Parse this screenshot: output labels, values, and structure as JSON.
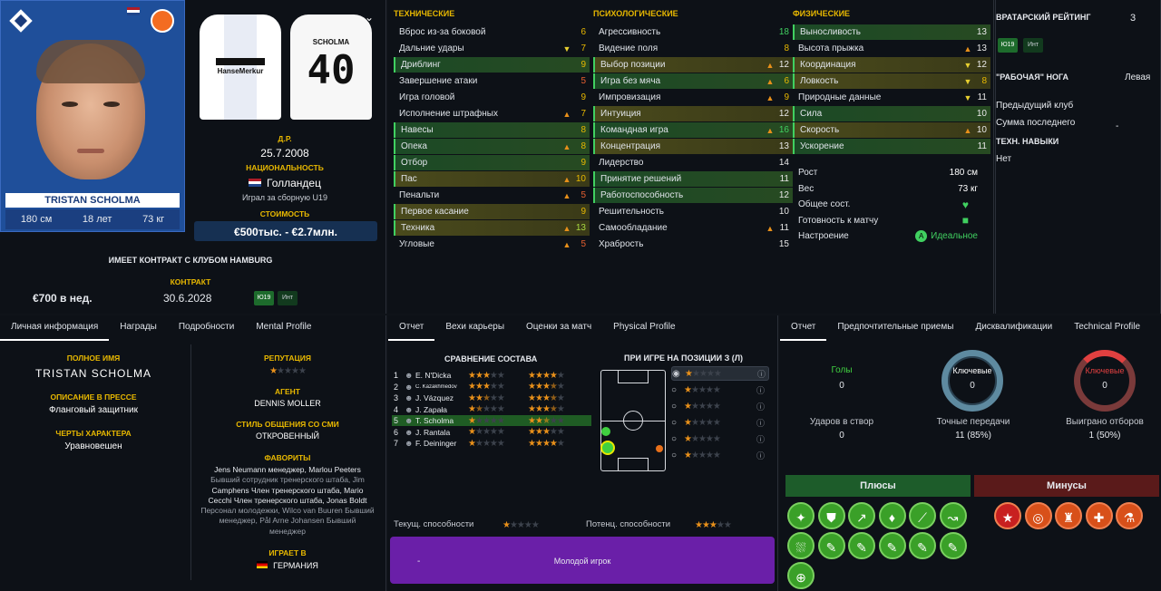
{
  "player": {
    "name_card": "TRISTAN SCHOLMA",
    "height": "180 см",
    "age": "18 лет",
    "weight": "73 кг",
    "dob_label": "Д.Р.",
    "dob": "25.7.2008",
    "nat_label": "НАЦИОНАЛЬНОСТЬ",
    "nation": "Голландец",
    "caps": "Играл за сборную U19",
    "value_label": "СТОИМОСТЬ",
    "value": "€500тыс. - €2.7млн.",
    "shirt_name": "SCHOLMA",
    "shirt_num": "40",
    "sponsor": "HanseMerkur"
  },
  "contract": {
    "club_line": "ИМЕЕТ КОНТРАКТ С КЛУБОМ HAMBURG",
    "contract_label": "КОНТРАКТ",
    "wage": "€700 в нед.",
    "end": "30.6.2028",
    "badge1": "Ю19",
    "badge2": "Инт"
  },
  "technical": {
    "header": "ТЕХНИЧЕСКИЕ",
    "rows": [
      {
        "n": "Вброс из-за боковой",
        "v": "6",
        "c": "#e8b800",
        "a": ""
      },
      {
        "n": "Дальние удары",
        "v": "7",
        "c": "#e8b800",
        "a": "▼"
      },
      {
        "n": "Дриблинг",
        "v": "9",
        "c": "#e8b800",
        "a": "",
        "hl": "g"
      },
      {
        "n": "Завершение атаки",
        "v": "5",
        "c": "#e86030",
        "a": ""
      },
      {
        "n": "Игра головой",
        "v": "9",
        "c": "#e8b800",
        "a": ""
      },
      {
        "n": "Исполнение штрафных",
        "v": "7",
        "c": "#e8b800",
        "a": "▲"
      },
      {
        "n": "Навесы",
        "v": "8",
        "c": "#e8b800",
        "a": "",
        "hl": "g"
      },
      {
        "n": "Опека",
        "v": "8",
        "c": "#e8b800",
        "a": "▲",
        "hl": "g"
      },
      {
        "n": "Отбор",
        "v": "9",
        "c": "#e8b800",
        "a": "",
        "hl": "g"
      },
      {
        "n": "Пас",
        "v": "10",
        "c": "#e8b800",
        "a": "▲",
        "hl": "y"
      },
      {
        "n": "Пенальти",
        "v": "5",
        "c": "#e86030",
        "a": "▲"
      },
      {
        "n": "Первое касание",
        "v": "9",
        "c": "#e8b800",
        "a": "",
        "hl": "y"
      },
      {
        "n": "Техника",
        "v": "13",
        "c": "#a8d840",
        "a": "▲",
        "hl": "y"
      },
      {
        "n": "Угловые",
        "v": "5",
        "c": "#e86030",
        "a": "▲"
      }
    ]
  },
  "mental": {
    "header": "ПСИХОЛОГИЧЕСКИЕ",
    "rows": [
      {
        "n": "Агрессивность",
        "v": "18",
        "c": "#40d060",
        "a": ""
      },
      {
        "n": "Видение поля",
        "v": "8",
        "c": "#e8b800",
        "a": ""
      },
      {
        "n": "Выбор позиции",
        "v": "12",
        "c": "#e8e8e8",
        "a": "▲",
        "hl": "y"
      },
      {
        "n": "Игра без мяча",
        "v": "6",
        "c": "#e8b800",
        "a": "▲",
        "hl": "g"
      },
      {
        "n": "Импровизация",
        "v": "9",
        "c": "#e8b800",
        "a": "▲"
      },
      {
        "n": "Интуиция",
        "v": "12",
        "c": "#e8e8e8",
        "a": "",
        "hl": "y"
      },
      {
        "n": "Командная игра",
        "v": "16",
        "c": "#40d060",
        "a": "▲",
        "hl": "g"
      },
      {
        "n": "Концентрация",
        "v": "13",
        "c": "#e8e8e8",
        "a": "",
        "hl": "y"
      },
      {
        "n": "Лидерство",
        "v": "14",
        "c": "#e8e8e8",
        "a": ""
      },
      {
        "n": "Принятие решений",
        "v": "11",
        "c": "#e8e8e8",
        "a": "",
        "hl": "g"
      },
      {
        "n": "Работоспособность",
        "v": "12",
        "c": "#e8e8e8",
        "a": "",
        "hl": "g"
      },
      {
        "n": "Решительность",
        "v": "10",
        "c": "#e8e8e8",
        "a": ""
      },
      {
        "n": "Самообладание",
        "v": "11",
        "c": "#e8e8e8",
        "a": "▲"
      },
      {
        "n": "Храбрость",
        "v": "15",
        "c": "#e8e8e8",
        "a": ""
      }
    ]
  },
  "physical": {
    "header": "ФИЗИЧЕСКИЕ",
    "rows": [
      {
        "n": "Выносливость",
        "v": "13",
        "c": "#e8e8e8",
        "a": "",
        "hl": "g"
      },
      {
        "n": "Высота прыжка",
        "v": "13",
        "c": "#e8e8e8",
        "a": "▲"
      },
      {
        "n": "Координация",
        "v": "12",
        "c": "#e8e8e8",
        "a": "▼",
        "hl": "y"
      },
      {
        "n": "Ловкость",
        "v": "8",
        "c": "#e8b800",
        "a": "▼",
        "hl": "y"
      },
      {
        "n": "Природные данные",
        "v": "11",
        "c": "#e8e8e8",
        "a": "▼"
      },
      {
        "n": "Сила",
        "v": "10",
        "c": "#e8e8e8",
        "a": "",
        "hl": "g"
      },
      {
        "n": "Скорость",
        "v": "10",
        "c": "#e8e8e8",
        "a": "▲",
        "hl": "y"
      },
      {
        "n": "Ускорение",
        "v": "11",
        "c": "#e8e8e8",
        "a": "",
        "hl": "g"
      }
    ],
    "extra": [
      {
        "n": "Рост",
        "v": "180 см"
      },
      {
        "n": "Вес",
        "v": "73 кг"
      },
      {
        "n": "Общее сост.",
        "v": ""
      },
      {
        "n": "Готовность к матчу",
        "v": ""
      },
      {
        "n": "Настроение",
        "v": "Идеальное"
      }
    ]
  },
  "gk": {
    "rating_label": "ВРАТАРСКИЙ РЕЙТИНГ",
    "rating": "3",
    "badge1": "Ю19",
    "badge2": "Инт",
    "foot_label": "\"РАБОЧАЯ\" НОГА",
    "foot": "Левая",
    "prev_club": "Предыдущий клуб",
    "last_sum": "Сумма последнего",
    "last_sum_val": "-",
    "tech_label": "ТЕХН. НАВЫКИ",
    "tech_val": "Нет"
  },
  "personal": {
    "tabs": [
      "Личная информация",
      "Награды",
      "Подробности",
      "Mental Profile"
    ],
    "fullname_label": "ПОЛНОЕ ИМЯ",
    "fullname": "TRISTAN SCHOLMA",
    "press_label": "ОПИСАНИЕ В ПРЕССЕ",
    "press": "Фланговый защитник",
    "traits_label": "ЧЕРТЫ ХАРАКТЕРА",
    "traits": "Уравновешен",
    "rep_label": "РЕПУТАЦИЯ",
    "agent_label": "АГЕНТ",
    "agent": "DENNIS MOLLER",
    "media_label": "СТИЛЬ ОБЩЕНИЯ СО СМИ",
    "media": "ОТКРОВЕННЫЙ",
    "fav_label": "ФАВОРИТЫ",
    "fav_lines": [
      "Jens Neumann менеджер, Marlou Peeters",
      "Бывший сотрудник тренерского штаба, Jim",
      "Camphens Член тренерского штаба, Mario",
      "Cecchi Член тренерского штаба, Jonas Boldt",
      "Персонал молодежки, Wilco van Buuren Бывший",
      "менеджер, Pål Arne Johansen Бывший",
      "менеджер"
    ],
    "plays_label": "ИГРАЕТ В",
    "plays": "ГЕРМАНИЯ"
  },
  "report": {
    "tabs": [
      "Отчет",
      "Вехи карьеры",
      "Оценки за матч",
      "Physical Profile"
    ],
    "compare_label": "СРАВНЕНИЕ СОСТАВА",
    "pos_label": "ПРИ ИГРЕ НА ПОЗИЦИИ З (Л)",
    "squad": [
      {
        "r": "1",
        "n": "E. N'Dicka",
        "a": 3,
        "b": 4
      },
      {
        "r": "2",
        "n": "C. Kazakhmedov",
        "a": 3,
        "b": 3.5
      },
      {
        "r": "3",
        "n": "J. Vázquez",
        "a": 2.5,
        "b": 3.5
      },
      {
        "r": "4",
        "n": "J. Zapała",
        "a": 1.5,
        "b": 3.5
      },
      {
        "r": "5",
        "n": "T. Scholma",
        "a": 1,
        "b": 2.5
      },
      {
        "r": "6",
        "n": "J. Rantala",
        "a": 1,
        "b": 3
      },
      {
        "r": "7",
        "n": "F. Deininger",
        "a": 1,
        "b": 4
      }
    ],
    "cur_label": "Текущ. способности",
    "pot_label": "Потенц. способности",
    "young": "Молодой игрок",
    "dash": "-"
  },
  "stats": {
    "tabs": [
      "Отчет",
      "Предпочтительные приемы",
      "Дисквалификации",
      "Technical Profile"
    ],
    "goals_label": "Голы",
    "goals": "0",
    "key_label": "Ключевые",
    "key": "0",
    "key2_label": "Ключевые",
    "key2": "0",
    "sot_label": "Ударов в створ",
    "sot": "0",
    "pass_label": "Точные передачи",
    "pass": "11 (85%)",
    "tack_label": "Выиграно отборов",
    "tack": "1 (50%)",
    "plus_label": "Плюсы",
    "minus_label": "Минусы"
  }
}
